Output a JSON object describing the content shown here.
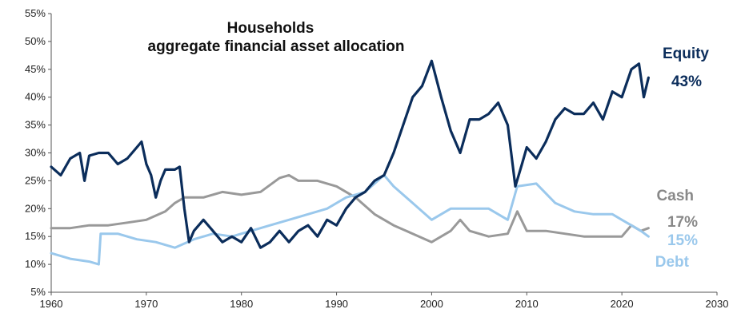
{
  "chart_data": {
    "type": "line",
    "title": "Households",
    "subtitle": "aggregate financial asset allocation",
    "xlim": [
      1960,
      2030
    ],
    "ylim": [
      5,
      55
    ],
    "x_ticks": [
      "1960",
      "1970",
      "1980",
      "1990",
      "2000",
      "2010",
      "2020",
      "2030"
    ],
    "x_tick_values": [
      1960,
      1970,
      1980,
      1990,
      2000,
      2010,
      2020,
      2030
    ],
    "y_ticks": [
      "5%",
      "10%",
      "15%",
      "20%",
      "25%",
      "30%",
      "35%",
      "40%",
      "45%",
      "50%",
      "55%"
    ],
    "y_tick_values": [
      5,
      10,
      15,
      20,
      25,
      30,
      35,
      40,
      45,
      50,
      55
    ],
    "grid": false,
    "series": [
      {
        "name": "Equity",
        "end_label": "43%",
        "color": "#0b2d5b",
        "points": [
          [
            1960,
            27.5
          ],
          [
            1961,
            26
          ],
          [
            1962,
            29
          ],
          [
            1963,
            30
          ],
          [
            1963.5,
            25
          ],
          [
            1964,
            29.5
          ],
          [
            1965,
            30
          ],
          [
            1966,
            30
          ],
          [
            1967,
            28
          ],
          [
            1968,
            29
          ],
          [
            1969,
            31
          ],
          [
            1969.5,
            32
          ],
          [
            1970,
            28
          ],
          [
            1970.5,
            26
          ],
          [
            1971,
            22
          ],
          [
            1971.5,
            25
          ],
          [
            1972,
            27
          ],
          [
            1973,
            27
          ],
          [
            1973.5,
            27.5
          ],
          [
            1974,
            20
          ],
          [
            1974.5,
            14
          ],
          [
            1975,
            16
          ],
          [
            1976,
            18
          ],
          [
            1977,
            16
          ],
          [
            1978,
            14
          ],
          [
            1979,
            15
          ],
          [
            1980,
            14
          ],
          [
            1981,
            16.5
          ],
          [
            1982,
            13
          ],
          [
            1983,
            14
          ],
          [
            1984,
            16
          ],
          [
            1985,
            14
          ],
          [
            1986,
            16
          ],
          [
            1987,
            17
          ],
          [
            1988,
            15
          ],
          [
            1989,
            18
          ],
          [
            1990,
            17
          ],
          [
            1991,
            20
          ],
          [
            1992,
            22
          ],
          [
            1993,
            23
          ],
          [
            1994,
            25
          ],
          [
            1995,
            26
          ],
          [
            1996,
            30
          ],
          [
            1997,
            35
          ],
          [
            1998,
            40
          ],
          [
            1999,
            42
          ],
          [
            2000,
            46.5
          ],
          [
            2001,
            40
          ],
          [
            2002,
            34
          ],
          [
            2003,
            30
          ],
          [
            2004,
            36
          ],
          [
            2005,
            36
          ],
          [
            2006,
            37
          ],
          [
            2007,
            39
          ],
          [
            2008,
            35
          ],
          [
            2008.8,
            24
          ],
          [
            2009.5,
            28
          ],
          [
            2010,
            31
          ],
          [
            2011,
            29
          ],
          [
            2012,
            32
          ],
          [
            2013,
            36
          ],
          [
            2014,
            38
          ],
          [
            2015,
            37
          ],
          [
            2016,
            37
          ],
          [
            2017,
            39
          ],
          [
            2018,
            36
          ],
          [
            2019,
            41
          ],
          [
            2020,
            40
          ],
          [
            2021,
            45
          ],
          [
            2021.8,
            46
          ],
          [
            2022.3,
            40
          ],
          [
            2022.8,
            43.5
          ]
        ]
      },
      {
        "name": "Cash",
        "end_label": "17%",
        "color": "#999999",
        "points": [
          [
            1960,
            16.5
          ],
          [
            1962,
            16.5
          ],
          [
            1964,
            17
          ],
          [
            1966,
            17
          ],
          [
            1968,
            17.5
          ],
          [
            1970,
            18
          ],
          [
            1972,
            19.5
          ],
          [
            1973,
            21
          ],
          [
            1974,
            22
          ],
          [
            1976,
            22
          ],
          [
            1978,
            23
          ],
          [
            1980,
            22.5
          ],
          [
            1982,
            23
          ],
          [
            1984,
            25.5
          ],
          [
            1985,
            26
          ],
          [
            1986,
            25
          ],
          [
            1988,
            25
          ],
          [
            1990,
            24
          ],
          [
            1992,
            22
          ],
          [
            1994,
            19
          ],
          [
            1996,
            17
          ],
          [
            1998,
            15.5
          ],
          [
            2000,
            14
          ],
          [
            2002,
            16
          ],
          [
            2003,
            18
          ],
          [
            2004,
            16
          ],
          [
            2006,
            15
          ],
          [
            2008,
            15.5
          ],
          [
            2009,
            19.5
          ],
          [
            2010,
            16
          ],
          [
            2012,
            16
          ],
          [
            2014,
            15.5
          ],
          [
            2016,
            15
          ],
          [
            2018,
            15
          ],
          [
            2020,
            15
          ],
          [
            2021,
            17
          ],
          [
            2022,
            16
          ],
          [
            2022.8,
            16.5
          ]
        ]
      },
      {
        "name": "Debt",
        "end_label": "15%",
        "color": "#9ac8ec",
        "points": [
          [
            1960,
            12
          ],
          [
            1962,
            11
          ],
          [
            1964,
            10.5
          ],
          [
            1965,
            10
          ],
          [
            1965.2,
            15.5
          ],
          [
            1967,
            15.5
          ],
          [
            1969,
            14.5
          ],
          [
            1971,
            14
          ],
          [
            1973,
            13
          ],
          [
            1975,
            14.5
          ],
          [
            1977,
            15.5
          ],
          [
            1979,
            15
          ],
          [
            1981,
            16
          ],
          [
            1983,
            17
          ],
          [
            1985,
            18
          ],
          [
            1987,
            19
          ],
          [
            1989,
            20
          ],
          [
            1991,
            22
          ],
          [
            1993,
            23
          ],
          [
            1995,
            26
          ],
          [
            1996,
            24
          ],
          [
            1998,
            21
          ],
          [
            2000,
            18
          ],
          [
            2002,
            20
          ],
          [
            2004,
            20
          ],
          [
            2006,
            20
          ],
          [
            2008,
            18
          ],
          [
            2009,
            24
          ],
          [
            2011,
            24.5
          ],
          [
            2013,
            21
          ],
          [
            2015,
            19.5
          ],
          [
            2017,
            19
          ],
          [
            2019,
            19
          ],
          [
            2020,
            18
          ],
          [
            2021,
            17
          ],
          [
            2022,
            16
          ],
          [
            2022.8,
            15
          ]
        ]
      }
    ]
  }
}
